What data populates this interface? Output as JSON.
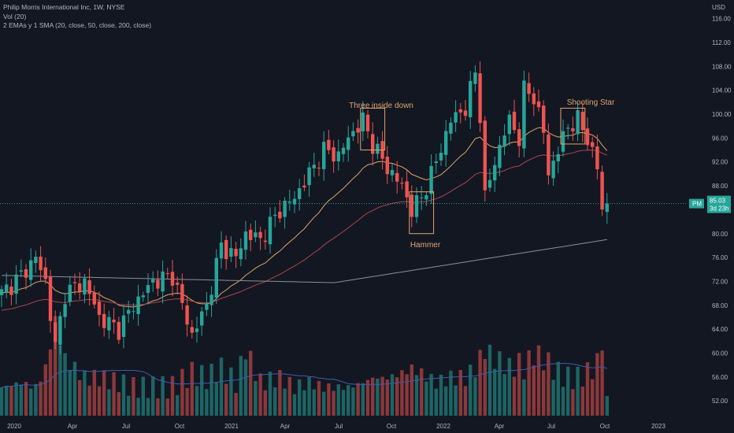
{
  "legend": {
    "title": "Philip Morris International Inc, 1W, NYSE",
    "volume": "Vol (20)",
    "indicators": "2 EMAs y 1 SMA (20, close, 50, close, 200, close)"
  },
  "chart_data": {
    "type": "candlestick",
    "currency": "USD",
    "x_ticks": [
      "2020",
      "Apr",
      "Jul",
      "Oct",
      "2021",
      "Apr",
      "Jul",
      "Oct",
      "2022",
      "Apr",
      "Jul",
      "Oct",
      "2023"
    ],
    "y_ticks": [
      52,
      56,
      60,
      64,
      68,
      72,
      76,
      80,
      84,
      88,
      92,
      96,
      100,
      104,
      108,
      112,
      116
    ],
    "ylim": [
      50,
      118
    ],
    "symbol_tag": "PM",
    "last_price": "85.03",
    "countdown": "3d 23h",
    "annotations": [
      "Three inside down",
      "Hammer",
      "Shooting Star"
    ],
    "colors": {
      "up": "#26a69a",
      "down": "#ef5350",
      "ema20": "#d9a866",
      "ema50": "#a9464f",
      "sma200": "#8c8f99",
      "vol_ma": "#3f5cab",
      "annotation": "#e0a46e",
      "background": "#131722"
    },
    "anchors": [
      {
        "week": 0,
        "close": 70,
        "vol": 0.3
      },
      {
        "week": 4,
        "close": 73,
        "vol": 0.35
      },
      {
        "week": 7,
        "close": 76,
        "vol": 0.3
      },
      {
        "week": 9,
        "close": 72,
        "vol": 0.5
      },
      {
        "week": 11,
        "close": 61,
        "vol": 1.0
      },
      {
        "week": 13,
        "close": 70,
        "vol": 0.6
      },
      {
        "week": 17,
        "close": 72,
        "vol": 0.4
      },
      {
        "week": 20,
        "close": 66,
        "vol": 0.4
      },
      {
        "week": 24,
        "close": 64,
        "vol": 0.35
      },
      {
        "week": 27,
        "close": 68,
        "vol": 0.3
      },
      {
        "week": 31,
        "close": 72,
        "vol": 0.3
      },
      {
        "week": 35,
        "close": 73,
        "vol": 0.3
      },
      {
        "week": 39,
        "close": 63,
        "vol": 0.45
      },
      {
        "week": 42,
        "close": 68,
        "vol": 0.4
      },
      {
        "week": 45,
        "close": 78,
        "vol": 0.5
      },
      {
        "week": 48,
        "close": 76,
        "vol": 0.35
      },
      {
        "week": 50,
        "close": 80,
        "vol": 0.7
      },
      {
        "week": 53,
        "close": 79,
        "vol": 0.35
      },
      {
        "week": 57,
        "close": 84,
        "vol": 0.4
      },
      {
        "week": 60,
        "close": 86,
        "vol": 0.3
      },
      {
        "week": 63,
        "close": 90,
        "vol": 0.35
      },
      {
        "week": 66,
        "close": 94,
        "vol": 0.3
      },
      {
        "week": 69,
        "close": 93,
        "vol": 0.3
      },
      {
        "week": 71,
        "close": 96,
        "vol": 0.3
      },
      {
        "week": 74,
        "close": 99,
        "vol": 0.35
      },
      {
        "week": 76,
        "close": 95,
        "vol": 0.4
      },
      {
        "week": 79,
        "close": 91,
        "vol": 0.4
      },
      {
        "week": 82,
        "close": 88,
        "vol": 0.45
      },
      {
        "week": 84,
        "close": 84,
        "vol": 0.5
      },
      {
        "week": 86,
        "close": 86,
        "vol": 0.45
      },
      {
        "week": 89,
        "close": 92,
        "vol": 0.35
      },
      {
        "week": 92,
        "close": 99,
        "vol": 0.4
      },
      {
        "week": 95,
        "close": 101,
        "vol": 0.4
      },
      {
        "week": 97,
        "close": 107,
        "vol": 0.5
      },
      {
        "week": 98,
        "close": 100,
        "vol": 0.6
      },
      {
        "week": 99,
        "close": 86,
        "vol": 0.7
      },
      {
        "week": 101,
        "close": 92,
        "vol": 0.6
      },
      {
        "week": 103,
        "close": 97,
        "vol": 0.55
      },
      {
        "week": 104,
        "close": 99,
        "vol": 0.5
      },
      {
        "week": 106,
        "close": 96,
        "vol": 0.55
      },
      {
        "week": 107,
        "close": 104,
        "vol": 0.5
      },
      {
        "week": 109,
        "close": 103,
        "vol": 0.65
      },
      {
        "week": 111,
        "close": 97,
        "vol": 0.6
      },
      {
        "week": 112,
        "close": 90,
        "vol": 0.55
      },
      {
        "week": 114,
        "close": 94,
        "vol": 0.45
      },
      {
        "week": 116,
        "close": 98,
        "vol": 0.4
      },
      {
        "week": 118,
        "close": 99,
        "vol": 0.4
      },
      {
        "week": 120,
        "close": 96,
        "vol": 0.45
      },
      {
        "week": 122,
        "close": 91,
        "vol": 0.55
      },
      {
        "week": 123,
        "close": 84,
        "vol": 0.8
      },
      {
        "week": 124,
        "close": 85,
        "vol": 0.1
      }
    ]
  }
}
